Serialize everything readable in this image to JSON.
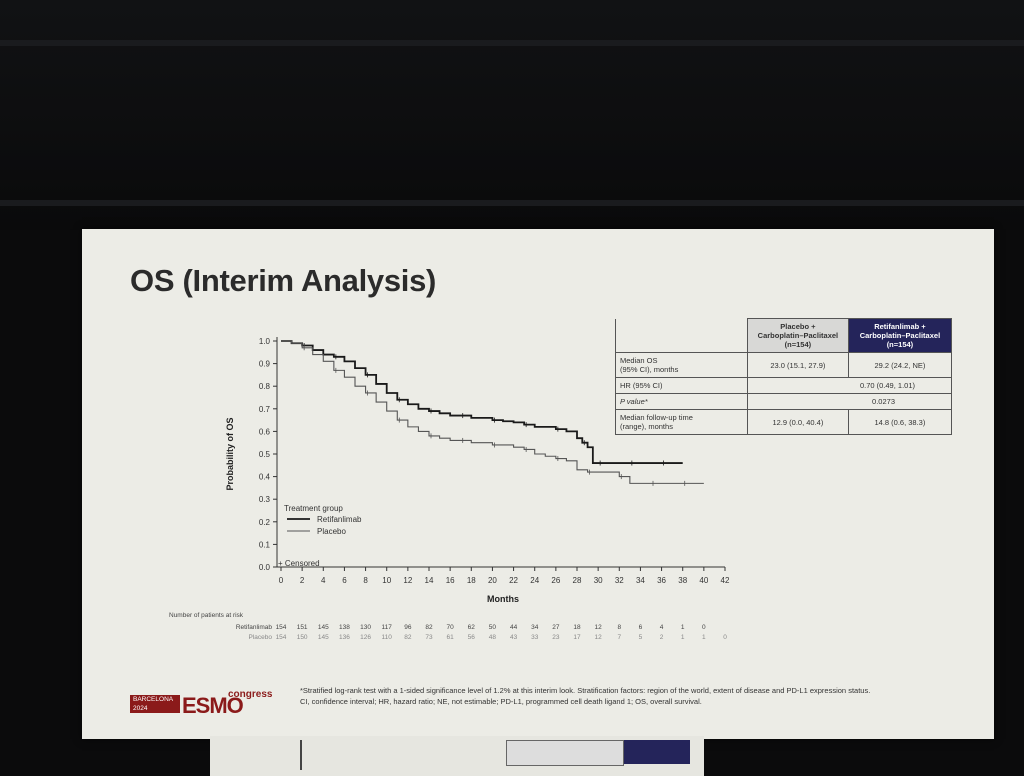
{
  "slide": {
    "title": "OS (Interim Analysis)"
  },
  "chart_data": {
    "type": "line",
    "xlabel": "Months",
    "ylabel": "Probability of OS",
    "xlim": [
      0,
      42
    ],
    "ylim": [
      0,
      1.0
    ],
    "x_ticks": [
      0,
      2,
      4,
      6,
      8,
      10,
      12,
      14,
      16,
      18,
      20,
      22,
      24,
      26,
      28,
      30,
      32,
      34,
      36,
      38,
      40,
      42
    ],
    "y_ticks": [
      "0.0",
      "0.1",
      "0.2",
      "0.3",
      "0.4",
      "0.5",
      "0.6",
      "0.7",
      "0.8",
      "0.9",
      "1.0"
    ],
    "legend_title": "Treatment group",
    "censored_label": "Censored",
    "series": [
      {
        "name": "Retifanlimab",
        "color": "#1a1a1a",
        "x": [
          0,
          1,
          2,
          3,
          4,
          5,
          6,
          7,
          8,
          9,
          10,
          11,
          12,
          13,
          14,
          15,
          16,
          17,
          18,
          19,
          20,
          21,
          22,
          23,
          24,
          25,
          26,
          27,
          28,
          28.5,
          29,
          29.5,
          30,
          31,
          32,
          33,
          34,
          35,
          36,
          37,
          38
        ],
        "y": [
          1.0,
          0.99,
          0.98,
          0.96,
          0.94,
          0.93,
          0.91,
          0.88,
          0.85,
          0.81,
          0.77,
          0.74,
          0.72,
          0.7,
          0.69,
          0.68,
          0.67,
          0.67,
          0.66,
          0.66,
          0.65,
          0.645,
          0.64,
          0.63,
          0.62,
          0.62,
          0.61,
          0.6,
          0.57,
          0.55,
          0.53,
          0.46,
          0.46,
          0.46,
          0.46,
          0.46,
          0.46,
          0.46,
          0.46,
          0.46,
          0.46
        ]
      },
      {
        "name": "Placebo",
        "color": "#555555",
        "x": [
          0,
          1,
          2,
          3,
          4,
          5,
          6,
          7,
          8,
          9,
          10,
          11,
          12,
          13,
          14,
          15,
          16,
          17,
          18,
          19,
          20,
          21,
          22,
          23,
          24,
          25,
          26,
          27,
          28,
          29,
          30,
          31,
          32,
          33,
          34,
          35,
          36,
          37,
          38,
          39,
          40
        ],
        "y": [
          1.0,
          0.99,
          0.97,
          0.94,
          0.91,
          0.87,
          0.84,
          0.8,
          0.77,
          0.73,
          0.69,
          0.65,
          0.62,
          0.6,
          0.58,
          0.57,
          0.56,
          0.56,
          0.55,
          0.55,
          0.54,
          0.54,
          0.53,
          0.52,
          0.5,
          0.49,
          0.48,
          0.47,
          0.43,
          0.42,
          0.42,
          0.42,
          0.4,
          0.37,
          0.37,
          0.37,
          0.37,
          0.37,
          0.37,
          0.37,
          0.37
        ]
      }
    ],
    "risk_table": {
      "title": "Number of patients at risk",
      "rows": [
        {
          "label": "Retifanlimab",
          "values": [
            "154",
            "151",
            "145",
            "138",
            "130",
            "117",
            "96",
            "82",
            "70",
            "62",
            "50",
            "44",
            "34",
            "27",
            "18",
            "12",
            "8",
            "6",
            "4",
            "1",
            "0"
          ]
        },
        {
          "label": "Placebo",
          "values": [
            "154",
            "150",
            "145",
            "136",
            "126",
            "110",
            "82",
            "73",
            "61",
            "56",
            "48",
            "43",
            "33",
            "23",
            "17",
            "12",
            "7",
            "5",
            "2",
            "1",
            "1",
            "0"
          ]
        }
      ]
    }
  },
  "stats_table": {
    "col_placebo": [
      "Placebo +",
      "Carboplatin–Paclitaxel",
      "(n=154)"
    ],
    "col_retifanlimab": [
      "Retifanlimab +",
      "Carboplatin–Paclitaxel",
      "(n=154)"
    ],
    "rows": [
      {
        "label": [
          "Median OS",
          "(95% CI), months"
        ],
        "placebo": "23.0 (15.1, 27.9)",
        "retifanlimab": "29.2 (24.2, NE)"
      },
      {
        "label": [
          "HR (95% CI)"
        ],
        "merged": "0.70 (0.49, 1.01)"
      },
      {
        "label": [
          "P value*"
        ],
        "merged": "0.0273"
      },
      {
        "label": [
          "Median follow-up time",
          "(range), months"
        ],
        "placebo": "12.9 (0.0, 40.4)",
        "retifanlimab": "14.8 (0.6, 38.3)"
      }
    ]
  },
  "footnote": [
    "*Stratified log-rank test with a 1-sided significance level of 1.2% at this interim look. Stratification factors: region of the world, extent of disease and PD-L1 expression status.",
    "CI, confidence interval; HR, hazard ratio; NE, not estimable; PD-L1, programmed cell death ligand 1; OS, overall survival."
  ],
  "logo": {
    "city": "BARCELONA",
    "year": "2024",
    "brand": "ESMO",
    "suffix": "congress"
  }
}
